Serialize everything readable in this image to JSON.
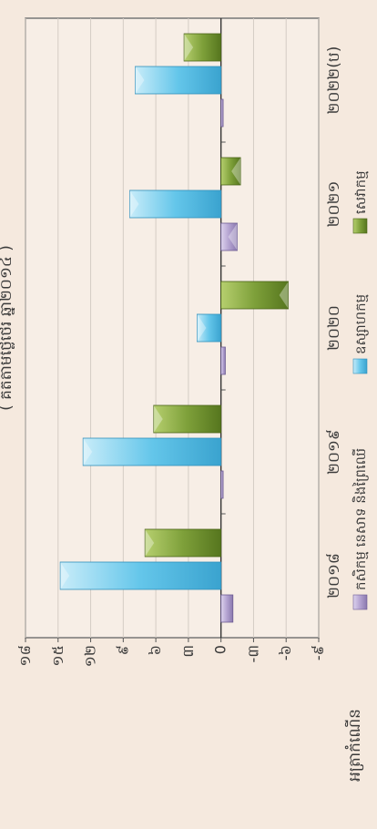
{
  "chart_data": {
    "type": "bar",
    "subtitle": "( គិតតាមថ្លៃថេរ ឆ្នាំ២០១៤ )",
    "ylabel": "អត្រាកំណើន",
    "categories": [
      "២០១៨",
      "២០១៩",
      "២០២០",
      "២០២១",
      "២០២២(ប)"
    ],
    "y_tick_labels": [
      "-៩",
      "-៦",
      "-៣",
      "0",
      "៣",
      "៦",
      "៩",
      "១២",
      "១៥",
      "១៨"
    ],
    "ylim": [
      -9,
      18
    ],
    "grid": true,
    "legend_position": "bottom",
    "series": [
      {
        "name": "កសិកម្ម នេសាទ និងព្រៃឈើ",
        "values": [
          -1.1,
          -0.2,
          -0.4,
          -1.5,
          -0.2
        ]
      },
      {
        "name": "ឧស្សាហកម្ម",
        "values": [
          14.8,
          12.7,
          2.2,
          8.4,
          7.9
        ]
      },
      {
        "name": "សេវាកម្ម",
        "values": [
          7.0,
          6.2,
          -6.2,
          -1.8,
          3.4
        ]
      }
    ],
    "colors": [
      "#b3a2d0",
      "#64c6ea",
      "#7ea03a"
    ]
  }
}
